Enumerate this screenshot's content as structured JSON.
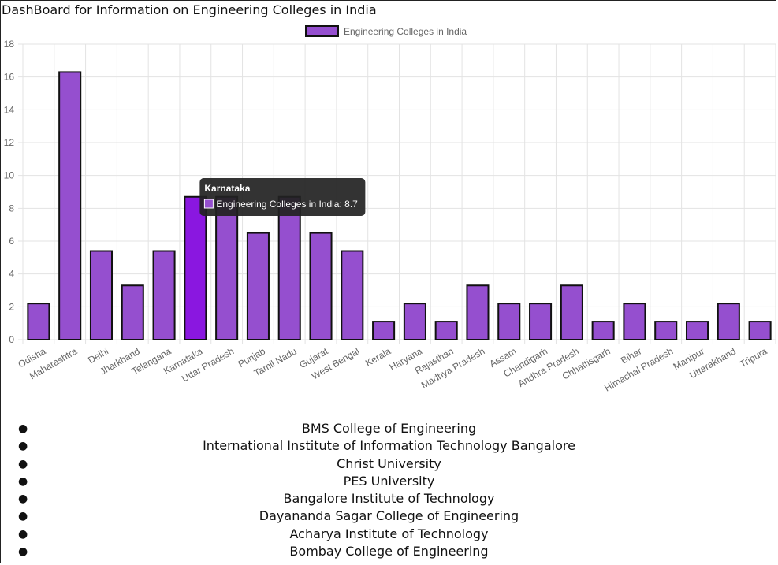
{
  "page": {
    "title": "DashBoard for Information on Engineering Colleges in India"
  },
  "chart_data": {
    "type": "bar",
    "title": "",
    "xlabel": "",
    "ylabel": "",
    "ylim": [
      0,
      18
    ],
    "yticks": [
      "0",
      "2",
      "4",
      "6",
      "8",
      "10",
      "12",
      "14",
      "16",
      "18"
    ],
    "grid": true,
    "legend": "top-center",
    "categories": [
      "Odisha",
      "Maharashtra",
      "Delhi",
      "Jharkhand",
      "Telangana",
      "Karnataka",
      "Uttar Pradesh",
      "Punjab",
      "Tamil Nadu",
      "Gujarat",
      "West Bengal",
      "Kerala",
      "Haryana",
      "Rajasthan",
      "Madhya Pradesh",
      "Assam",
      "Chandigarh",
      "Andhra Pradesh",
      "Chhattisgarh",
      "Bihar",
      "Himachal Pradesh",
      "Manipur",
      "Uttarakhand",
      "Tripura"
    ],
    "series": [
      {
        "name": "Engineering Colleges in India",
        "values": [
          2.2,
          16.3,
          5.4,
          3.3,
          5.4,
          8.7,
          8.7,
          6.5,
          8.7,
          6.5,
          5.4,
          1.1,
          2.2,
          1.1,
          3.3,
          2.2,
          2.2,
          3.3,
          1.1,
          2.2,
          1.1,
          1.1,
          2.2,
          1.1
        ]
      }
    ],
    "colors": {
      "bar_fill": "#954fcf",
      "bar_fill_hover": "#8a17e0",
      "bar_border": "#111111",
      "grid": "#e3e3e3",
      "tick_text": "#666666",
      "tooltip_bg": "#222222"
    },
    "tooltip": {
      "title": "Karnataka",
      "label": "Engineering Colleges in India: 8.7",
      "active_category": "Karnataka"
    }
  },
  "colleges": [
    "BMS College of Engineering",
    "International Institute of Information Technology Bangalore",
    "Christ University",
    "PES University",
    "Bangalore Institute of Technology",
    "Dayananda Sagar College of Engineering",
    "Acharya Institute of Technology",
    "Bombay College of Engineering"
  ]
}
